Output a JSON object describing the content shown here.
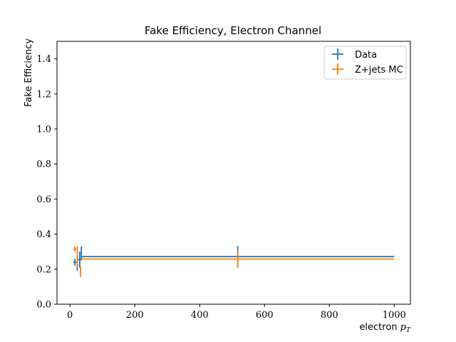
{
  "chart_data": {
    "type": "scatter",
    "title": "Fake Efficiency, Electron Channel",
    "xlabel_text": "electron ",
    "xlabel_math": "p",
    "xlabel_sub": "T",
    "ylabel": "Fake Efficiency",
    "xlim": [
      -40,
      1050
    ],
    "ylim": [
      0,
      1.5
    ],
    "xticks": [
      0,
      200,
      400,
      600,
      800,
      1000
    ],
    "xtick_labels": [
      "0",
      "200",
      "400",
      "600",
      "800",
      "1000"
    ],
    "yticks": [
      0,
      0.2,
      0.4,
      0.6,
      0.8,
      1.0,
      1.2,
      1.4
    ],
    "ytick_labels": [
      "0.0",
      "0.2",
      "0.4",
      "0.6",
      "0.8",
      "1.0",
      "1.2",
      "1.4"
    ],
    "grid": false,
    "legend_position": "top-right",
    "series": [
      {
        "name": "Data",
        "color": "#1f77b4",
        "points": [
          {
            "x": 15,
            "xerr": 5,
            "y": 0.24,
            "yerr": 0.02
          },
          {
            "x": 22.5,
            "xerr": 2.5,
            "y": 0.225,
            "yerr": 0.035
          },
          {
            "x": 30,
            "xerr": 5,
            "y": 0.255,
            "yerr": 0.045
          },
          {
            "x": 35,
            "xerr": 0,
            "y": 0.29,
            "yerr": 0.04
          },
          {
            "x": 517.5,
            "xerr": 482.5,
            "y": 0.272,
            "yerr": 0.06
          }
        ]
      },
      {
        "name": "Z+jets MC",
        "color": "#ff7f0e",
        "points": [
          {
            "x": 15,
            "xerr": 5,
            "y": 0.315,
            "yerr": 0.015
          },
          {
            "x": 22.5,
            "xerr": 2.5,
            "y": 0.27,
            "yerr": 0.06
          },
          {
            "x": 32.5,
            "xerr": 2.5,
            "y": 0.185,
            "yerr": 0.03
          },
          {
            "x": 517.5,
            "xerr": 482.5,
            "y": 0.258,
            "yerr": 0.05
          }
        ]
      }
    ]
  }
}
